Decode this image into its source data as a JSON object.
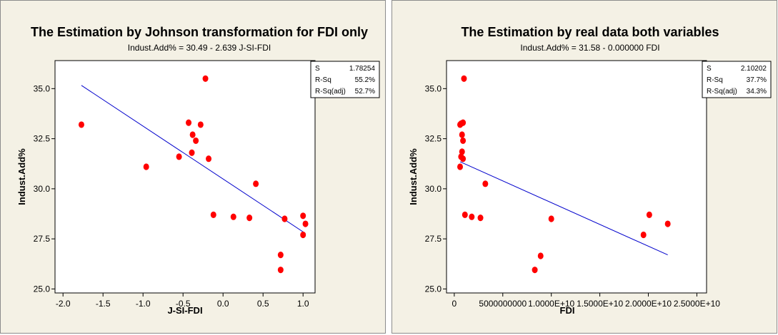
{
  "colors": {
    "panel_bg": "#f4f1e5",
    "plot_bg": "#ffffff",
    "point": "#ff0000",
    "fit_line": "#0000cc",
    "border": "#000000"
  },
  "chart_data": [
    {
      "type": "scatter",
      "title": "The Estimation by Johnson transformation for FDI only",
      "subtitle": "Indust.Add% = 30.49 - 2.639 J-SI-FDI",
      "xlabel": "J-SI-FDI",
      "ylabel": "Indust.Add%",
      "xlim": [
        -2.1,
        1.15
      ],
      "ylim": [
        24.8,
        36.4
      ],
      "xticks": [
        -2.0,
        -1.5,
        -1.0,
        -0.5,
        0.0,
        0.5,
        1.0
      ],
      "xtick_labels": [
        "-2.0",
        "-1.5",
        "-1.0",
        "-0.5",
        "0.0",
        "0.5",
        "1.0"
      ],
      "yticks": [
        25.0,
        27.5,
        30.0,
        32.5,
        35.0
      ],
      "ytick_labels": [
        "25.0",
        "27.5",
        "30.0",
        "32.5",
        "35.0"
      ],
      "points": [
        {
          "x": -1.77,
          "y": 33.2
        },
        {
          "x": -0.96,
          "y": 31.1
        },
        {
          "x": -0.55,
          "y": 31.6
        },
        {
          "x": -0.43,
          "y": 33.3
        },
        {
          "x": -0.38,
          "y": 32.7
        },
        {
          "x": -0.39,
          "y": 31.8
        },
        {
          "x": -0.34,
          "y": 32.4
        },
        {
          "x": -0.28,
          "y": 33.2
        },
        {
          "x": -0.22,
          "y": 35.5
        },
        {
          "x": -0.18,
          "y": 31.5
        },
        {
          "x": -0.12,
          "y": 28.7
        },
        {
          "x": 0.13,
          "y": 28.6
        },
        {
          "x": 0.33,
          "y": 28.55
        },
        {
          "x": 0.41,
          "y": 30.25
        },
        {
          "x": 0.72,
          "y": 26.7
        },
        {
          "x": 0.72,
          "y": 25.95
        },
        {
          "x": 0.77,
          "y": 28.5
        },
        {
          "x": 1.0,
          "y": 28.65
        },
        {
          "x": 1.0,
          "y": 27.7
        },
        {
          "x": 1.03,
          "y": 28.25
        }
      ],
      "fit_line": {
        "x": [
          -1.77,
          1.03
        ],
        "intercept": 30.49,
        "slope": -2.639
      },
      "stats": [
        {
          "name": "S",
          "value": "1.78254"
        },
        {
          "name": "R-Sq",
          "value": "55.2%"
        },
        {
          "name": "R-Sq(adj)",
          "value": "52.7%"
        }
      ]
    },
    {
      "type": "scatter",
      "title": "The Estimation by real data both variables",
      "subtitle": "Indust.Add% = 31.58 - 0.000000 FDI",
      "xlabel": "FDI",
      "ylabel": "Indust.Add%",
      "xlim": [
        -800000000,
        26000000000
      ],
      "ylim": [
        24.8,
        36.4
      ],
      "xticks": [
        0,
        5000000000,
        10000000000,
        15000000000,
        20000000000,
        25000000000
      ],
      "xtick_labels": [
        "0",
        "5000000000",
        "1.0000E+10",
        "1.5000E+10",
        "2.0000E+10",
        "2.5000E+10"
      ],
      "yticks": [
        25.0,
        27.5,
        30.0,
        32.5,
        35.0
      ],
      "ytick_labels": [
        "25.0",
        "27.5",
        "30.0",
        "32.5",
        "35.0"
      ],
      "points": [
        {
          "x": 600000000,
          "y": 33.2
        },
        {
          "x": 700000000,
          "y": 33.25
        },
        {
          "x": 900000000,
          "y": 33.3
        },
        {
          "x": 800000000,
          "y": 32.7
        },
        {
          "x": 900000000,
          "y": 32.4
        },
        {
          "x": 800000000,
          "y": 31.85
        },
        {
          "x": 700000000,
          "y": 31.6
        },
        {
          "x": 900000000,
          "y": 31.5
        },
        {
          "x": 1000000000,
          "y": 35.5
        },
        {
          "x": 600000000,
          "y": 31.1
        },
        {
          "x": 1100000000,
          "y": 28.7
        },
        {
          "x": 1800000000,
          "y": 28.6
        },
        {
          "x": 2700000000,
          "y": 28.55
        },
        {
          "x": 3200000000,
          "y": 30.25
        },
        {
          "x": 8900000000,
          "y": 26.65
        },
        {
          "x": 8300000000,
          "y": 25.95
        },
        {
          "x": 10000000000,
          "y": 28.5
        },
        {
          "x": 20100000000,
          "y": 28.7
        },
        {
          "x": 19500000000,
          "y": 27.7
        },
        {
          "x": 22000000000,
          "y": 28.25
        }
      ],
      "fit_line": {
        "x": [
          600000000,
          22000000000
        ],
        "y": [
          31.35,
          26.7
        ]
      },
      "stats": [
        {
          "name": "S",
          "value": "2.10202"
        },
        {
          "name": "R-Sq",
          "value": "37.7%"
        },
        {
          "name": "R-Sq(adj)",
          "value": "34.3%"
        }
      ]
    }
  ]
}
